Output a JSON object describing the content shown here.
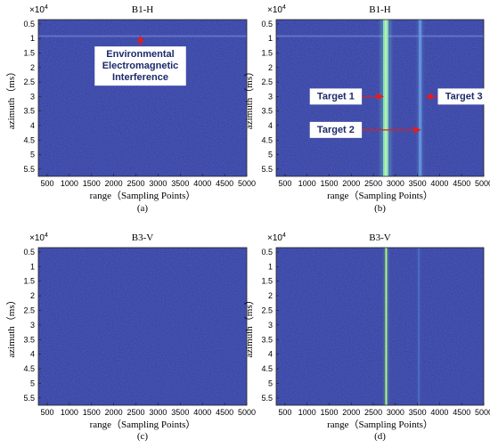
{
  "chart_data": [
    {
      "type": "heatmap",
      "title": "B1-H",
      "xlabel": "range（Sampling Points）",
      "ylabel": "azimuth（ms）",
      "y_scale_label": "×10",
      "y_scale_exp": "4",
      "caption": "(a)",
      "xlim": [
        300,
        5000
      ],
      "ylim": [
        0.35,
        5.75
      ],
      "y_inverted": true,
      "x_ticks": [
        500,
        1000,
        1500,
        2000,
        2500,
        3000,
        3500,
        4000,
        4500,
        5000
      ],
      "y_ticks": [
        "0.5",
        "1",
        "1.5",
        "2",
        "2.5",
        "3",
        "3.5",
        "4",
        "4.5",
        "5",
        "5.5"
      ],
      "colormap": {
        "background": "#3341a4",
        "noise": "#2a3492"
      },
      "features": [
        {
          "kind": "horizontal_line",
          "y": 0.92,
          "color": "#7d92dc",
          "intensity": 0.55
        }
      ],
      "annotations": [
        {
          "text": "Environmental\nElectromagnetic\nInterference",
          "arrow_to": {
            "x": 2600,
            "y": 0.95
          },
          "box_at": {
            "x": 2600,
            "y": 1.95
          }
        }
      ]
    },
    {
      "type": "heatmap",
      "title": "B1-H",
      "xlabel": "range（Sampling Points）",
      "ylabel": "azimuth（ms）",
      "y_scale_label": "×10",
      "y_scale_exp": "4",
      "caption": "(b)",
      "xlim": [
        300,
        5000
      ],
      "ylim": [
        0.35,
        5.75
      ],
      "y_inverted": true,
      "x_ticks": [
        500,
        1000,
        1500,
        2000,
        2500,
        3000,
        3500,
        4000,
        4500,
        5000
      ],
      "y_ticks": [
        "0.5",
        "1",
        "1.5",
        "2",
        "2.5",
        "3",
        "3.5",
        "4",
        "4.5",
        "5",
        "5.5"
      ],
      "colormap": {
        "background": "#3341a4",
        "noise": "#2a3492"
      },
      "features": [
        {
          "kind": "horizontal_line",
          "y": 0.92,
          "color": "#7d92dc",
          "intensity": 0.55
        },
        {
          "kind": "vertical_band",
          "x": 2780,
          "width": 120,
          "color": "#7fe0c0",
          "intensity": 1.0
        },
        {
          "kind": "vertical_band",
          "x": 3560,
          "width": 70,
          "color": "#6ea6e6",
          "intensity": 0.7
        }
      ],
      "annotations": [
        {
          "text": "Target 1",
          "arrow_to": {
            "x": 2700,
            "y": 3.0
          },
          "box_at": {
            "x": 1650,
            "y": 3.0
          }
        },
        {
          "text": "Target 2",
          "arrow_to": {
            "x": 3540,
            "y": 4.15
          },
          "box_at": {
            "x": 1650,
            "y": 4.15
          }
        },
        {
          "text": "Target 3",
          "arrow_to": {
            "x": 3720,
            "y": 3.0
          },
          "box_at": {
            "x": 4550,
            "y": 3.0
          }
        }
      ]
    },
    {
      "type": "heatmap",
      "title": "B3-V",
      "xlabel": "range（Sampling Points）",
      "ylabel": "azimuth（ms）",
      "y_scale_label": "×10",
      "y_scale_exp": "4",
      "caption": "(c)",
      "xlim": [
        300,
        5000
      ],
      "ylim": [
        0.35,
        5.75
      ],
      "y_inverted": true,
      "x_ticks": [
        500,
        1000,
        1500,
        2000,
        2500,
        3000,
        3500,
        4000,
        4500,
        5000
      ],
      "y_ticks": [
        "0.5",
        "1",
        "1.5",
        "2",
        "2.5",
        "3",
        "3.5",
        "4",
        "4.5",
        "5",
        "5.5"
      ],
      "colormap": {
        "background": "#3341a4",
        "noise": "#2a3492"
      },
      "features": [],
      "annotations": []
    },
    {
      "type": "heatmap",
      "title": "B3-V",
      "xlabel": "range（Sampling Points）",
      "ylabel": "azimuth（ms）",
      "y_scale_label": "×10",
      "y_scale_exp": "4",
      "caption": "(d)",
      "xlim": [
        300,
        5000
      ],
      "ylim": [
        0.35,
        5.75
      ],
      "y_inverted": true,
      "x_ticks": [
        500,
        1000,
        1500,
        2000,
        2500,
        3000,
        3500,
        4000,
        4500,
        5000
      ],
      "y_ticks": [
        "0.5",
        "1",
        "1.5",
        "2",
        "2.5",
        "3",
        "3.5",
        "4",
        "4.5",
        "5",
        "5.5"
      ],
      "colormap": {
        "background": "#3341a4",
        "noise": "#2a3492"
      },
      "features": [
        {
          "kind": "vertical_band",
          "x": 2790,
          "width": 45,
          "color": "#8fe07f",
          "intensity": 1.0
        },
        {
          "kind": "vertical_band",
          "x": 3530,
          "width": 30,
          "color": "#5a86d6",
          "intensity": 0.6
        }
      ],
      "annotations": []
    }
  ],
  "colors": {
    "arrow": "#e31d1d",
    "annotation_box": "#ffffff",
    "annotation_text": "#1b2a6b"
  }
}
